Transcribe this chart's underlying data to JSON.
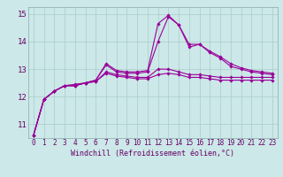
{
  "x": [
    0,
    1,
    2,
    3,
    4,
    5,
    6,
    7,
    8,
    9,
    10,
    11,
    12,
    13,
    14,
    15,
    16,
    17,
    18,
    19,
    20,
    21,
    22,
    23
  ],
  "series": [
    [
      10.6,
      11.9,
      12.2,
      12.4,
      12.4,
      12.5,
      12.6,
      13.15,
      12.9,
      12.85,
      12.85,
      12.9,
      14.0,
      14.9,
      14.6,
      13.8,
      13.9,
      13.6,
      13.4,
      13.1,
      13.0,
      12.9,
      12.85,
      12.8
    ],
    [
      10.6,
      11.9,
      12.2,
      12.4,
      12.45,
      12.5,
      12.6,
      13.2,
      12.95,
      12.9,
      12.9,
      12.95,
      14.65,
      14.95,
      14.6,
      13.9,
      13.9,
      13.65,
      13.45,
      13.2,
      13.05,
      12.95,
      12.9,
      12.85
    ],
    [
      10.6,
      11.9,
      12.2,
      12.4,
      12.4,
      12.5,
      12.55,
      12.9,
      12.8,
      12.75,
      12.7,
      12.7,
      13.0,
      13.0,
      12.9,
      12.8,
      12.8,
      12.75,
      12.7,
      12.7,
      12.7,
      12.7,
      12.7,
      12.7
    ],
    [
      10.6,
      11.9,
      12.2,
      12.4,
      12.4,
      12.5,
      12.55,
      12.85,
      12.75,
      12.7,
      12.65,
      12.65,
      12.8,
      12.85,
      12.8,
      12.7,
      12.7,
      12.65,
      12.6,
      12.6,
      12.6,
      12.6,
      12.6,
      12.6
    ]
  ],
  "line_color": "#990099",
  "marker": "D",
  "markersize": 1.8,
  "linewidth": 0.8,
  "background_color": "#cce8e8",
  "grid_color": "#aacccc",
  "xlabel": "Windchill (Refroidissement éolien,°C)",
  "ylim": [
    10.5,
    15.25
  ],
  "xlim": [
    -0.5,
    23.5
  ],
  "yticks": [
    11,
    12,
    13,
    14,
    15
  ],
  "xticks": [
    0,
    1,
    2,
    3,
    4,
    5,
    6,
    7,
    8,
    9,
    10,
    11,
    12,
    13,
    14,
    15,
    16,
    17,
    18,
    19,
    20,
    21,
    22,
    23
  ],
  "tick_color": "#660066",
  "label_color": "#660066"
}
